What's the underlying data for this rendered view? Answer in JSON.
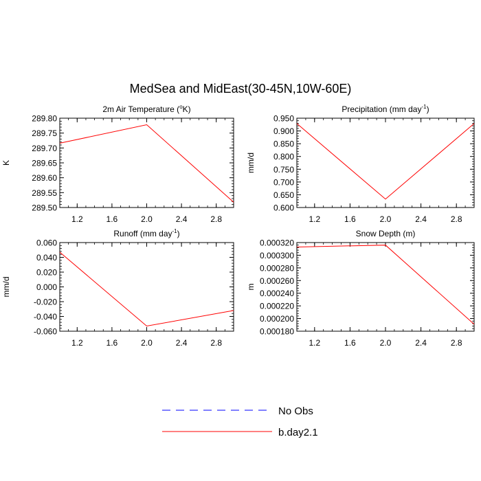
{
  "figure": {
    "title": "MedSea and MidEast(30-45N,10W-60E)"
  },
  "legend": {
    "items": [
      {
        "label": "No Obs",
        "color": "#0000ff",
        "dash": "dashed"
      },
      {
        "label": "b.day2.1",
        "color": "#ff0000",
        "dash": "solid"
      }
    ]
  },
  "chart_data": [
    {
      "type": "line",
      "title": "2m Air Temperature (",
      "title_super": "o",
      "title_tail": "K)",
      "ylabel": "K",
      "xlim": [
        1,
        3
      ],
      "ylim": [
        289.5,
        289.8
      ],
      "x_ticks": [
        "1.2",
        "1.6",
        "2.0",
        "2.4",
        "2.8"
      ],
      "y_ticks": [
        "289.50",
        "289.55",
        "289.60",
        "289.65",
        "289.70",
        "289.75",
        "289.80"
      ],
      "series": [
        {
          "name": "b.day2.1",
          "color": "#ff0000",
          "x": [
            1,
            2,
            3
          ],
          "y": [
            289.716,
            289.778,
            289.518
          ]
        }
      ]
    },
    {
      "type": "line",
      "title": "Precipitation (mm day",
      "title_super": "-1",
      "title_tail": ")",
      "ylabel": "mm/d",
      "xlim": [
        1,
        3
      ],
      "ylim": [
        0.6,
        0.95
      ],
      "x_ticks": [
        "1.2",
        "1.6",
        "2.0",
        "2.4",
        "2.8"
      ],
      "y_ticks": [
        "0.600",
        "0.650",
        "0.700",
        "0.750",
        "0.800",
        "0.850",
        "0.900",
        "0.950"
      ],
      "series": [
        {
          "name": "b.day2.1",
          "color": "#ff0000",
          "x": [
            1,
            2,
            3
          ],
          "y": [
            0.929,
            0.633,
            0.929
          ]
        }
      ]
    },
    {
      "type": "line",
      "title": "Runoff (mm day",
      "title_super": "-1",
      "title_tail": ")",
      "ylabel": "mm/d",
      "xlim": [
        1,
        3
      ],
      "ylim": [
        -0.06,
        0.06
      ],
      "x_ticks": [
        "1.2",
        "1.6",
        "2.0",
        "2.4",
        "2.8"
      ],
      "y_ticks": [
        "-0.060",
        "-0.040",
        "-0.020",
        "0.000",
        "0.020",
        "0.040",
        "0.060"
      ],
      "series": [
        {
          "name": "b.day2.1",
          "color": "#ff0000",
          "x": [
            1,
            2,
            3
          ],
          "y": [
            0.047,
            -0.053,
            -0.032
          ]
        }
      ]
    },
    {
      "type": "line",
      "title": "Snow Depth (m)",
      "title_super": "",
      "title_tail": "",
      "ylabel": "m",
      "xlim": [
        1,
        3
      ],
      "ylim": [
        0.00018,
        0.00032
      ],
      "x_ticks": [
        "1.2",
        "1.6",
        "2.0",
        "2.4",
        "2.8"
      ],
      "y_ticks": [
        "0.000180",
        "0.000200",
        "0.000220",
        "0.000240",
        "0.000260",
        "0.000280",
        "0.000300",
        "0.000320"
      ],
      "series": [
        {
          "name": "b.day2.1",
          "color": "#ff0000",
          "x": [
            1,
            2,
            3
          ],
          "y": [
            0.000313,
            0.000316,
            0.000191
          ]
        }
      ]
    }
  ]
}
